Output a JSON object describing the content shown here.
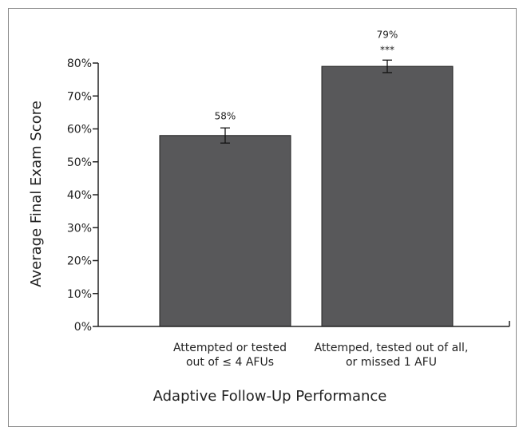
{
  "chart_data": {
    "type": "bar",
    "title": "",
    "xlabel": "Adaptive Follow-Up Performance",
    "ylabel": "Average Final Exam Score",
    "ylim": [
      0,
      80
    ],
    "yticks": [
      0,
      10,
      20,
      30,
      40,
      50,
      60,
      70,
      80
    ],
    "ytick_suffix": "%",
    "categories": [
      [
        "Attempted or tested",
        "out of ≤ 4 AFUs"
      ],
      [
        "Attemped, tested out of all,",
        "or missed 1 AFU"
      ]
    ],
    "values": [
      58,
      79
    ],
    "errors": [
      2.3,
      1.9
    ],
    "data_labels": [
      "58%",
      "79%"
    ],
    "annotations": [
      "",
      "***"
    ],
    "bar_color": "#58585a",
    "grid": false,
    "legend": "none"
  }
}
